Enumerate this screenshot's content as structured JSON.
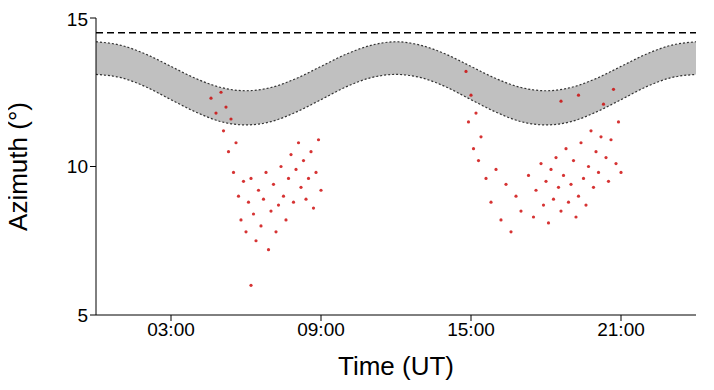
{
  "chart_data": {
    "type": "scatter",
    "x_label": "Time (UT)",
    "y_label": "Azimuth (°)",
    "xlim": [
      0,
      24
    ],
    "xticks": [
      {
        "value": 3,
        "label": "03:00"
      },
      {
        "value": 9,
        "label": "09:00"
      },
      {
        "value": 15,
        "label": "15:00"
      },
      {
        "value": 21,
        "label": "21:00"
      }
    ],
    "ylim": [
      5,
      15
    ],
    "yticks": [
      5,
      10,
      15
    ],
    "series": [
      {
        "type": "band",
        "color": "#c0c0c0",
        "line_style": "dotted",
        "x": [
          0,
          1,
          2,
          3,
          4,
          5,
          6,
          7,
          8,
          9,
          10,
          11,
          12,
          13,
          14,
          15,
          16,
          17,
          18,
          19,
          20,
          21,
          22,
          23,
          24
        ],
        "upper": [
          14.2,
          14.08,
          13.78,
          13.37,
          12.96,
          12.66,
          12.55,
          12.66,
          12.96,
          13.37,
          13.78,
          14.08,
          14.2,
          14.08,
          13.78,
          13.37,
          12.96,
          12.66,
          12.55,
          12.66,
          12.96,
          13.37,
          13.78,
          14.08,
          14.2
        ],
        "lower": [
          13.1,
          12.99,
          12.68,
          12.25,
          11.83,
          11.51,
          11.4,
          11.51,
          11.83,
          12.25,
          12.68,
          12.99,
          13.1,
          12.99,
          12.68,
          12.25,
          11.83,
          11.51,
          11.4,
          11.51,
          11.83,
          12.25,
          12.68,
          12.99,
          13.1
        ]
      },
      {
        "type": "line",
        "color": "#000000",
        "line_style": "dashed",
        "x": [
          0,
          24
        ],
        "values": [
          14.5,
          14.5
        ]
      },
      {
        "type": "scatter",
        "color": "#cc0000",
        "marker": "dot",
        "x": [
          4.6,
          4.8,
          5.0,
          5.1,
          5.2,
          5.3,
          5.4,
          5.5,
          5.6,
          5.7,
          5.8,
          5.9,
          6.0,
          6.1,
          6.2,
          6.2,
          6.3,
          6.4,
          6.5,
          6.6,
          6.7,
          6.8,
          6.9,
          7.0,
          7.1,
          7.2,
          7.3,
          7.4,
          7.5,
          7.6,
          7.7,
          7.8,
          7.9,
          8.0,
          8.1,
          8.2,
          8.3,
          8.4,
          8.5,
          8.6,
          8.7,
          8.8,
          8.9,
          9.0,
          14.8,
          14.9,
          15.0,
          15.1,
          15.2,
          15.3,
          15.4,
          15.6,
          15.8,
          16.0,
          16.2,
          16.4,
          16.6,
          16.8,
          17.0,
          17.3,
          17.5,
          17.6,
          17.8,
          17.9,
          18.0,
          18.1,
          18.2,
          18.3,
          18.4,
          18.5,
          18.6,
          18.6,
          18.7,
          18.8,
          18.9,
          19.0,
          19.1,
          19.2,
          19.3,
          19.3,
          19.4,
          19.5,
          19.6,
          19.7,
          19.8,
          19.9,
          20.0,
          20.1,
          20.2,
          20.3,
          20.4,
          20.5,
          20.6,
          20.7,
          20.8,
          20.9,
          21.0
        ],
        "values": [
          12.3,
          11.8,
          12.5,
          11.2,
          12.0,
          10.5,
          11.6,
          9.8,
          10.8,
          9.0,
          8.2,
          9.5,
          7.8,
          8.8,
          9.6,
          6.0,
          8.4,
          7.5,
          9.2,
          8.0,
          8.9,
          9.8,
          7.2,
          8.5,
          9.4,
          7.8,
          8.7,
          10.0,
          9.0,
          8.2,
          9.6,
          10.4,
          8.8,
          9.9,
          10.8,
          9.3,
          10.2,
          8.9,
          9.6,
          10.5,
          8.6,
          9.8,
          10.9,
          9.2,
          13.2,
          11.5,
          12.4,
          10.6,
          11.8,
          10.2,
          11.0,
          9.6,
          8.8,
          9.9,
          8.2,
          9.4,
          7.8,
          9.0,
          8.5,
          9.7,
          8.3,
          9.2,
          10.1,
          8.7,
          9.5,
          8.1,
          9.9,
          8.9,
          10.3,
          9.3,
          8.5,
          12.2,
          9.7,
          10.6,
          8.8,
          9.4,
          10.2,
          8.3,
          9.0,
          12.4,
          10.8,
          9.6,
          8.7,
          10.0,
          11.2,
          9.3,
          10.5,
          9.8,
          11.0,
          12.1,
          10.3,
          9.5,
          10.9,
          12.6,
          10.1,
          11.5,
          9.8
        ]
      }
    ]
  }
}
